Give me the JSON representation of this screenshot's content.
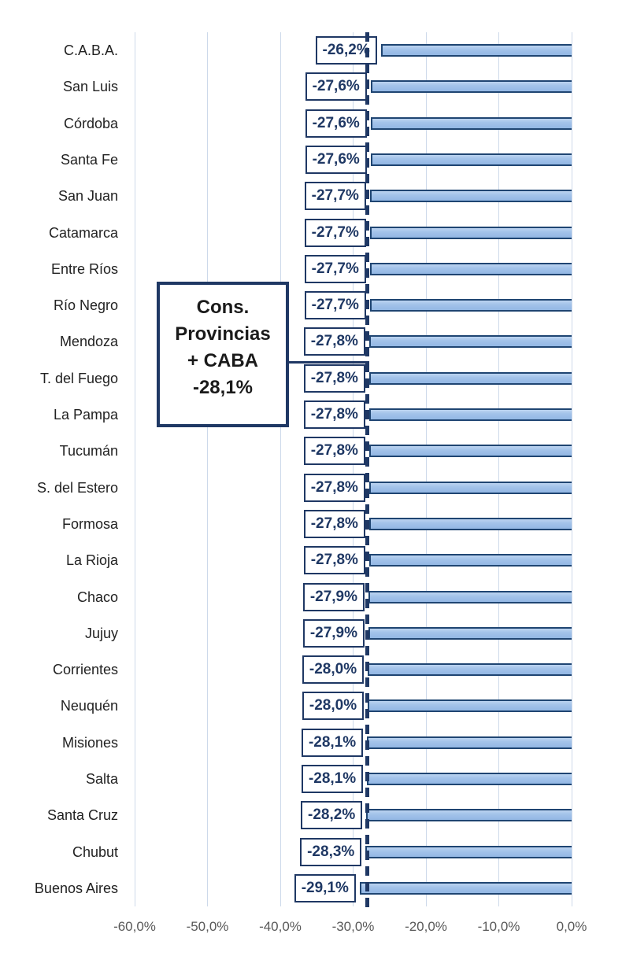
{
  "chart_data": {
    "type": "bar",
    "orientation": "horizontal",
    "title": "",
    "xlabel": "",
    "ylabel": "",
    "grid": true,
    "xlim": [
      -60,
      0
    ],
    "x_ticks": [
      {
        "value": -60,
        "label": "-60,0%"
      },
      {
        "value": -50,
        "label": "-50,0%"
      },
      {
        "value": -40,
        "label": "-40,0%"
      },
      {
        "value": -30,
        "label": "-30,0%"
      },
      {
        "value": -20,
        "label": "-20,0%"
      },
      {
        "value": -10,
        "label": "-10,0%"
      },
      {
        "value": 0,
        "label": "0,0%"
      }
    ],
    "categories": [
      "C.A.B.A.",
      "San Luis",
      "Córdoba",
      "Santa Fe",
      "San Juan",
      "Catamarca",
      "Entre Ríos",
      "Río Negro",
      "Mendoza",
      "T. del Fuego",
      "La Pampa",
      "Tucumán",
      "S. del Estero",
      "Formosa",
      "La Rioja",
      "Chaco",
      "Jujuy",
      "Corrientes",
      "Neuquén",
      "Misiones",
      "Salta",
      "Santa Cruz",
      "Chubut",
      "Buenos Aires"
    ],
    "values": [
      -26.2,
      -27.6,
      -27.6,
      -27.6,
      -27.7,
      -27.7,
      -27.7,
      -27.7,
      -27.8,
      -27.8,
      -27.8,
      -27.8,
      -27.8,
      -27.8,
      -27.8,
      -27.9,
      -27.9,
      -28.0,
      -28.0,
      -28.1,
      -28.1,
      -28.2,
      -28.3,
      -29.1
    ],
    "data_labels": [
      "-26,2%",
      "-27,6%",
      "-27,6%",
      "-27,6%",
      "-27,7%",
      "-27,7%",
      "-27,7%",
      "-27,7%",
      "-27,8%",
      "-27,8%",
      "-27,8%",
      "-27,8%",
      "-27,8%",
      "-27,8%",
      "-27,8%",
      "-27,9%",
      "-27,9%",
      "-28,0%",
      "-28,0%",
      "-28,1%",
      "-28,1%",
      "-28,2%",
      "-28,3%",
      "-29,1%"
    ],
    "reference_line": {
      "value": -28.1,
      "style": "dashed"
    },
    "annotation": {
      "lines": [
        "Cons.",
        "Provincias",
        "+ CABA",
        "-28,1%"
      ],
      "target_value": -28.1
    },
    "legend": null
  },
  "colors": {
    "bar_fill": "#a3c3ea",
    "bar_border": "#1f4572",
    "label_box_border": "#1f3864",
    "label_text": "#1f3864",
    "reference_line": "#1f3864",
    "callout_border": "#1f3864",
    "callout_text": "#1a1a1a",
    "gridline": "#cdd9ea",
    "axis_text": "#595959",
    "category_text": "#222222"
  }
}
